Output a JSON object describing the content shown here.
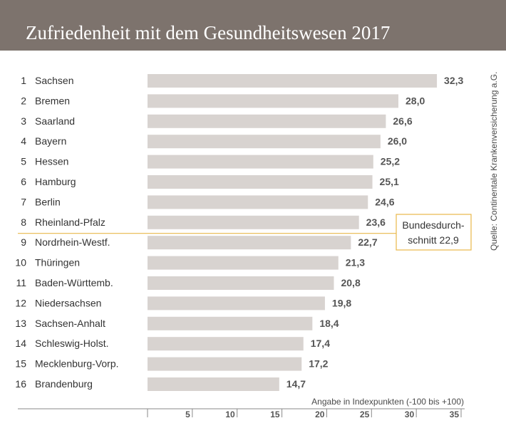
{
  "header": {
    "title": "Zufriedenheit mit dem Gesundheitswesen 2017",
    "source": "Quelle: Continentale Krankenversicherung a.G."
  },
  "colors": {
    "header_bg": "#7d736d",
    "bar": "#d8d3d0",
    "average_line": "#e8b84a",
    "text": "#333333",
    "value_text": "#555555"
  },
  "chart_data": {
    "type": "bar",
    "orientation": "horizontal",
    "title": "Zufriedenheit mit dem Gesundheitswesen 2017",
    "ranks": [
      "1",
      "2",
      "3",
      "4",
      "5",
      "6",
      "7",
      "8",
      "9",
      "10",
      "11",
      "12",
      "13",
      "14",
      "15",
      "16"
    ],
    "categories": [
      "Sachsen",
      "Bremen",
      "Saarland",
      "Bayern",
      "Hessen",
      "Hamburg",
      "Berlin",
      "Rheinland-Pfalz",
      "Nordrhein-Westf.",
      "Thüringen",
      "Baden-Württemb.",
      "Niedersachsen",
      "Sachsen-Anhalt",
      "Schleswig-Holst.",
      "Mecklenburg-Vorp.",
      "Brandenburg"
    ],
    "values": [
      32.3,
      28.0,
      26.6,
      26.0,
      25.2,
      25.1,
      24.6,
      23.6,
      22.7,
      21.3,
      20.8,
      19.8,
      18.4,
      17.4,
      17.2,
      14.7
    ],
    "value_labels": [
      "32,3",
      "28,0",
      "26,6",
      "26,0",
      "25,2",
      "25,1",
      "24,6",
      "23,6",
      "22,7",
      "21,3",
      "20,8",
      "19,8",
      "18,4",
      "17,4",
      "17,2",
      "14,7"
    ],
    "xlabel": "Angabe in Indexpunkten (-100 bis +100)",
    "xlim": [
      0,
      35
    ],
    "xticks": [
      5,
      10,
      15,
      20,
      25,
      30,
      35
    ],
    "average": {
      "value": 22.9,
      "label_line1": "Bundesdurch-",
      "label_line2": "schnitt 22,9",
      "position_after_rank": 8
    }
  }
}
